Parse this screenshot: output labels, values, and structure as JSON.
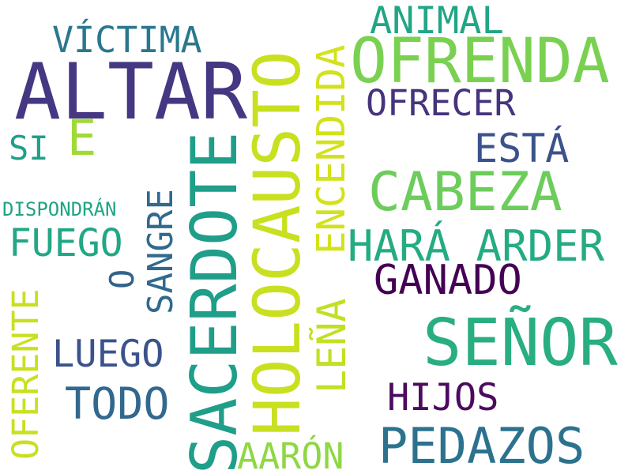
{
  "cloud": {
    "altar": {
      "text": "ALTAR",
      "color": "#453781"
    },
    "sacerdote": {
      "text": "SACERDOTE",
      "color": "#1f9e89"
    },
    "holocausto": {
      "text": "HOLOCAUSTO",
      "color": "#c8e020"
    },
    "ofrenda": {
      "text": "OFRENDA",
      "color": "#7ad151"
    },
    "senor": {
      "text": "SEÑOR",
      "color": "#28ae80"
    },
    "cabeza": {
      "text": "CABEZA",
      "color": "#6ccd5a"
    },
    "pedazos": {
      "text": "PEDAZOS",
      "color": "#2c728e"
    },
    "hara_arder": {
      "text": "HARÁ ARDER",
      "color": "#25ab82"
    },
    "encendida": {
      "text": "ENCENDIDA",
      "color": "#d2e21b"
    },
    "lena": {
      "text": "LEÑA",
      "color": "#c2df23"
    },
    "ganado": {
      "text": "GANADO",
      "color": "#440154"
    },
    "todo": {
      "text": "TODO",
      "color": "#31688e"
    },
    "victima": {
      "text": "VÍCTIMA",
      "color": "#2a788e"
    },
    "e": {
      "text": "E",
      "color": "#a0da39"
    },
    "esta": {
      "text": "ESTÁ",
      "color": "#3b528b"
    },
    "ofrecer": {
      "text": "OFRECER",
      "color": "#46337e"
    },
    "animal": {
      "text": "ANIMAL",
      "color": "#21a685"
    },
    "fuego": {
      "text": "FUEGO",
      "color": "#22a785"
    },
    "sangre": {
      "text": "SANGRE",
      "color": "#306a8e"
    },
    "luego": {
      "text": "LUEGO",
      "color": "#3b528b"
    },
    "hijos": {
      "text": "HIJOS",
      "color": "#4c0b5f"
    },
    "oferente": {
      "text": "OFERENTE",
      "color": "#c8e020"
    },
    "aaron": {
      "text": "AARÓN",
      "color": "#8fd744"
    },
    "si": {
      "text": "SI",
      "color": "#1fa088"
    },
    "o": {
      "text": "O",
      "color": "#33638d"
    },
    "dispondran": {
      "text": "DISPONDRÁN",
      "color": "#20a386"
    }
  }
}
